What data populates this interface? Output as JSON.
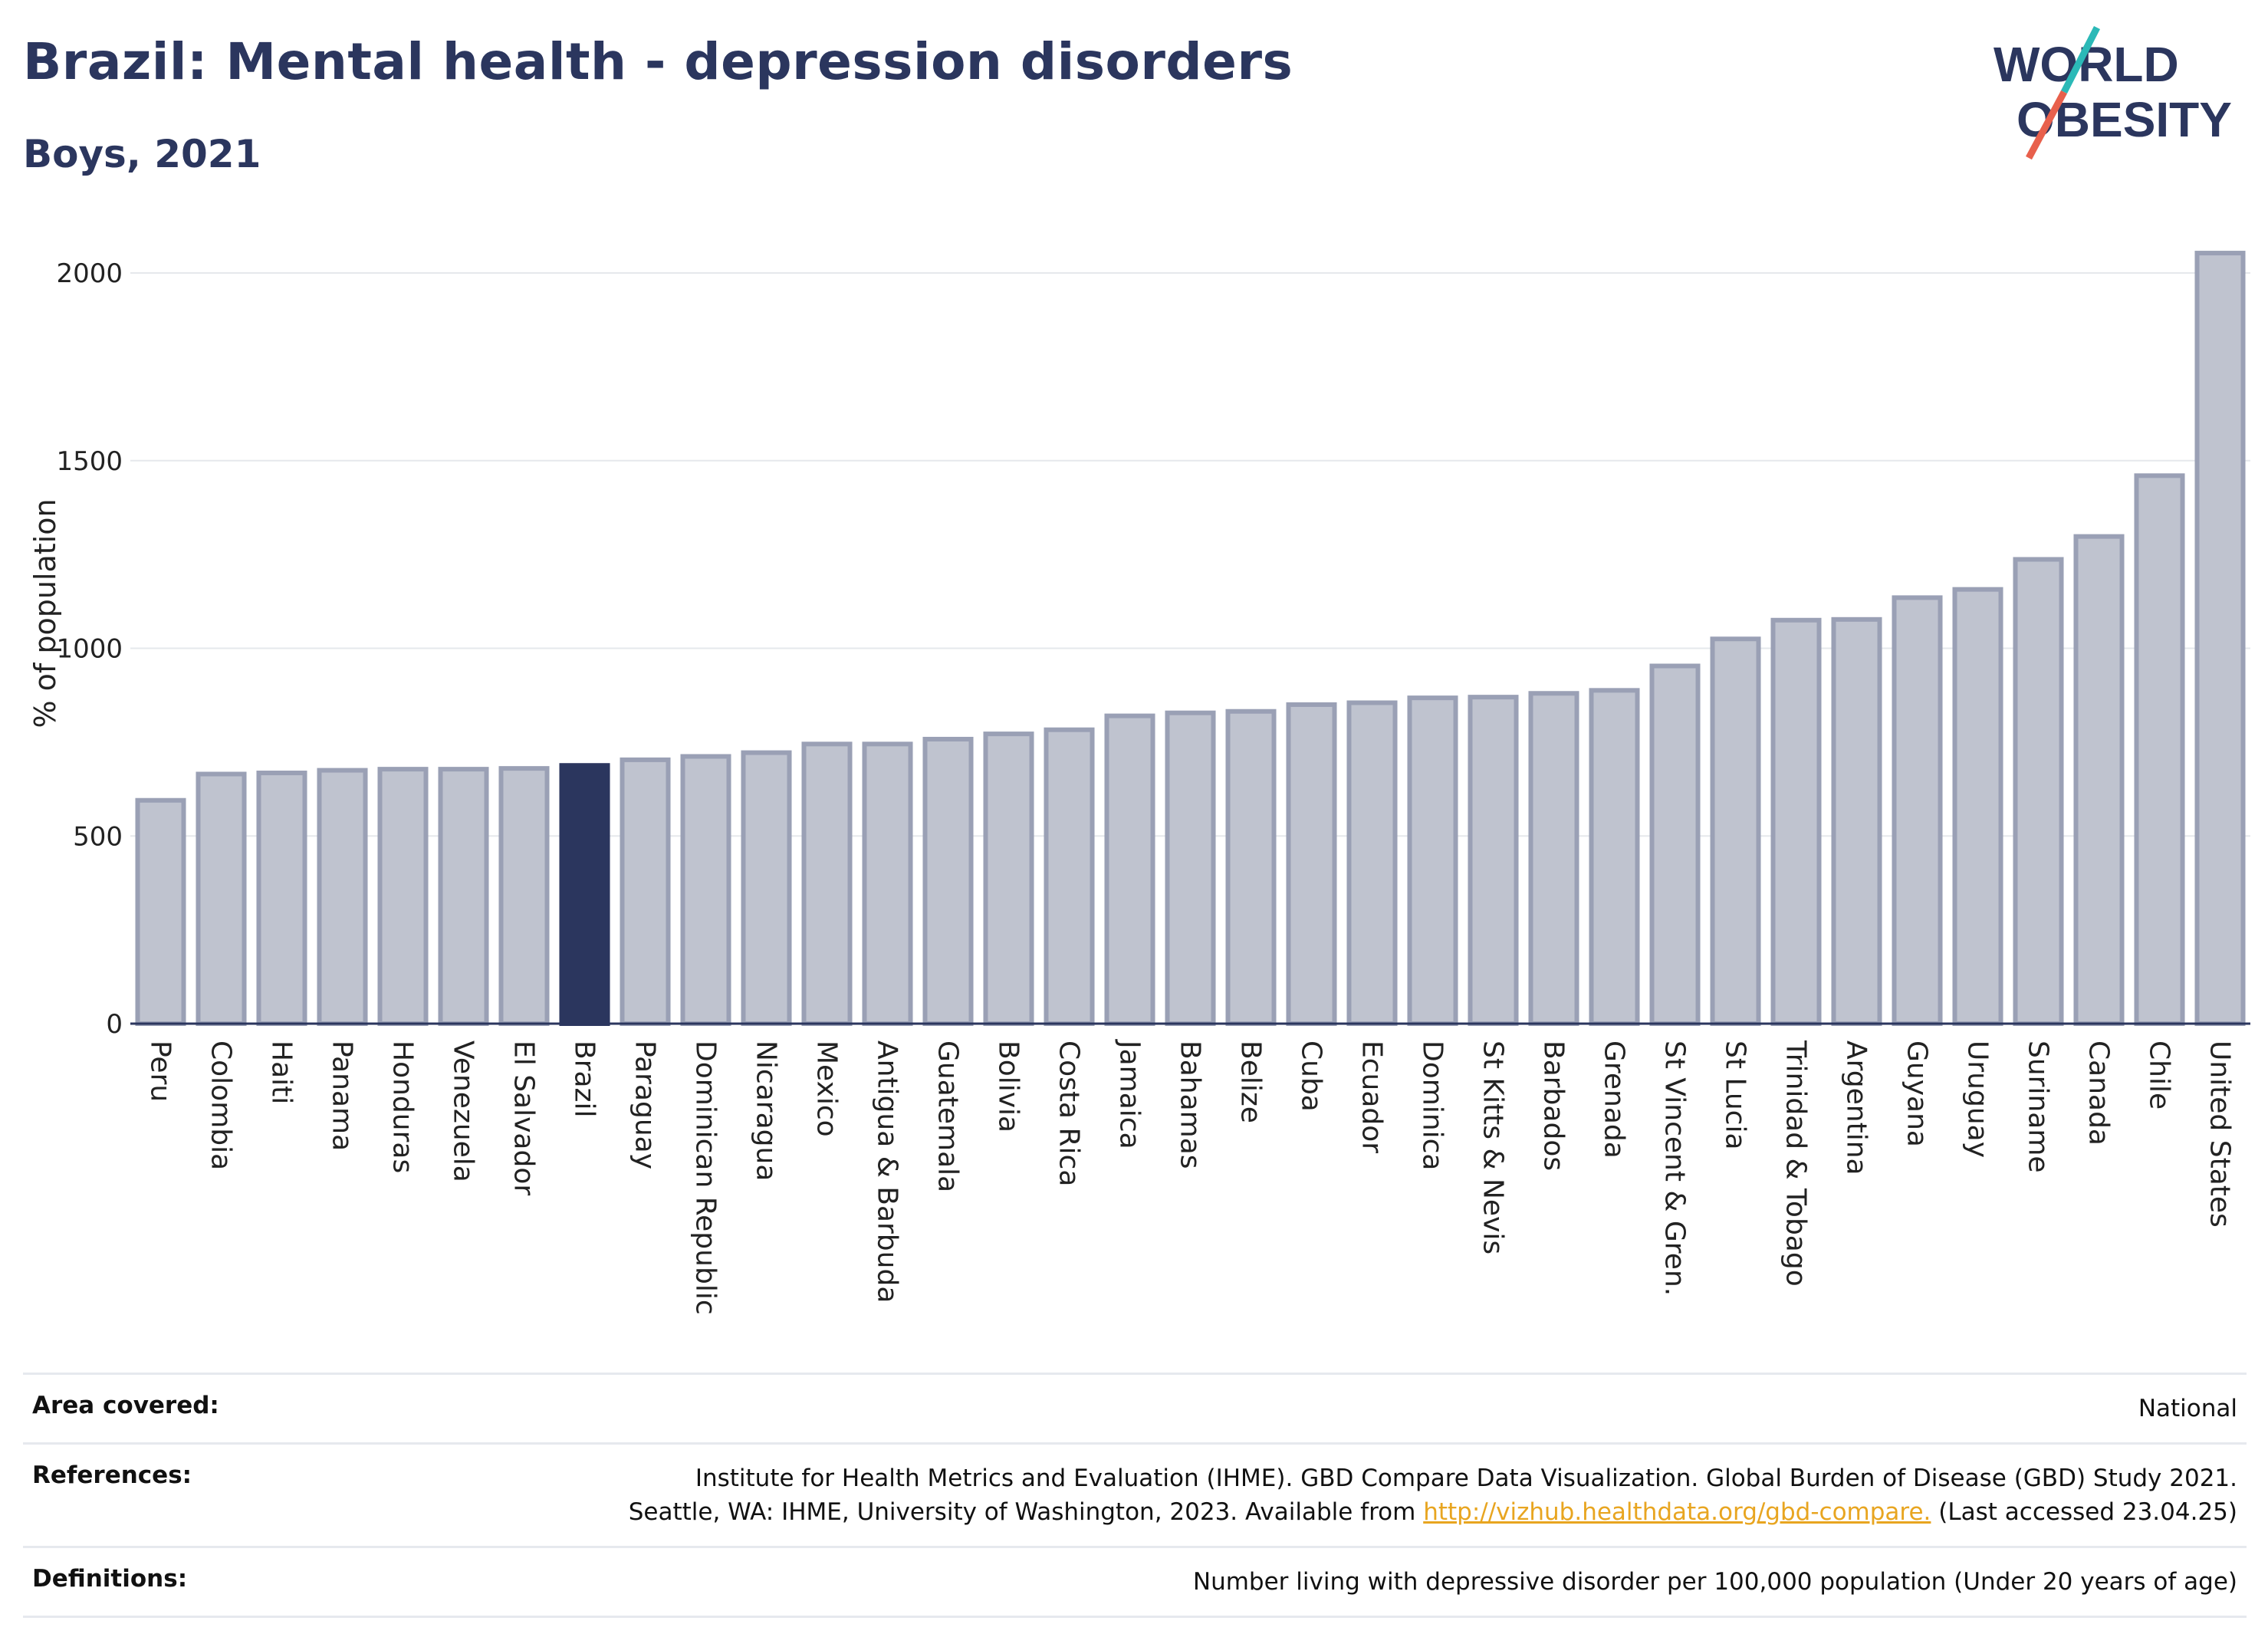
{
  "header": {
    "title": "Brazil: Mental health - depression disorders",
    "subtitle": "Boys, 2021",
    "logo_line1": "WORLD",
    "logo_line2": "OBESITY"
  },
  "colors": {
    "bar": "#bfc3cf",
    "bar_border": "#9aa0b5",
    "highlight": "#2b365e",
    "title": "#2b365e",
    "link": "#e8a520",
    "logo_slash_teal": "#2bb9b7",
    "logo_slash_red": "#e8604c"
  },
  "chart_data": {
    "type": "bar",
    "title": "Brazil: Mental health - depression disorders",
    "subtitle": "Boys, 2021",
    "ylabel": "% of population",
    "xlabel": "",
    "ylim": [
      0,
      2100
    ],
    "yticks": [
      0,
      500,
      1000,
      1500,
      2000
    ],
    "grid": true,
    "highlight": "Brazil",
    "categories": [
      "Peru",
      "Colombia",
      "Haiti",
      "Panama",
      "Honduras",
      "Venezuela",
      "El Salvador",
      "Brazil",
      "Paraguay",
      "Dominican Republic",
      "Nicaragua",
      "Mexico",
      "Antigua & Barbuda",
      "Guatemala",
      "Bolivia",
      "Costa Rica",
      "Jamaica",
      "Bahamas",
      "Belize",
      "Cuba",
      "Ecuador",
      "Dominica",
      "St Kitts & Nevis",
      "Barbados",
      "Grenada",
      "St Vincent & Gren.",
      "St Lucia",
      "Trinidad & Tobago",
      "Argentina",
      "Guyana",
      "Uruguay",
      "Suriname",
      "Canada",
      "Chile",
      "United States"
    ],
    "values": [
      595,
      665,
      668,
      675,
      678,
      678,
      680,
      688,
      703,
      712,
      722,
      745,
      745,
      758,
      772,
      783,
      820,
      828,
      832,
      850,
      855,
      868,
      870,
      880,
      888,
      953,
      1025,
      1075,
      1077,
      1135,
      1157,
      1237,
      1298,
      1460,
      2053
    ]
  },
  "info": {
    "area_label": "Area covered:",
    "area_value": "National",
    "references_label": "References:",
    "references_line1": "Institute for Health Metrics and Evaluation (IHME). GBD Compare Data Visualization. Global Burden of Disease (GBD) Study 2021.",
    "references_line2_pre": "Seattle, WA: IHME, University of Washington, 2023. Available from ",
    "references_link": "http://vizhub.healthdata.org/gbd-compare.",
    "references_line2_post": " (Last accessed 23.04.25)",
    "definitions_label": "Definitions:",
    "definitions_value": "Number living with depressive disorder per 100,000 population (Under 20 years of age)"
  }
}
